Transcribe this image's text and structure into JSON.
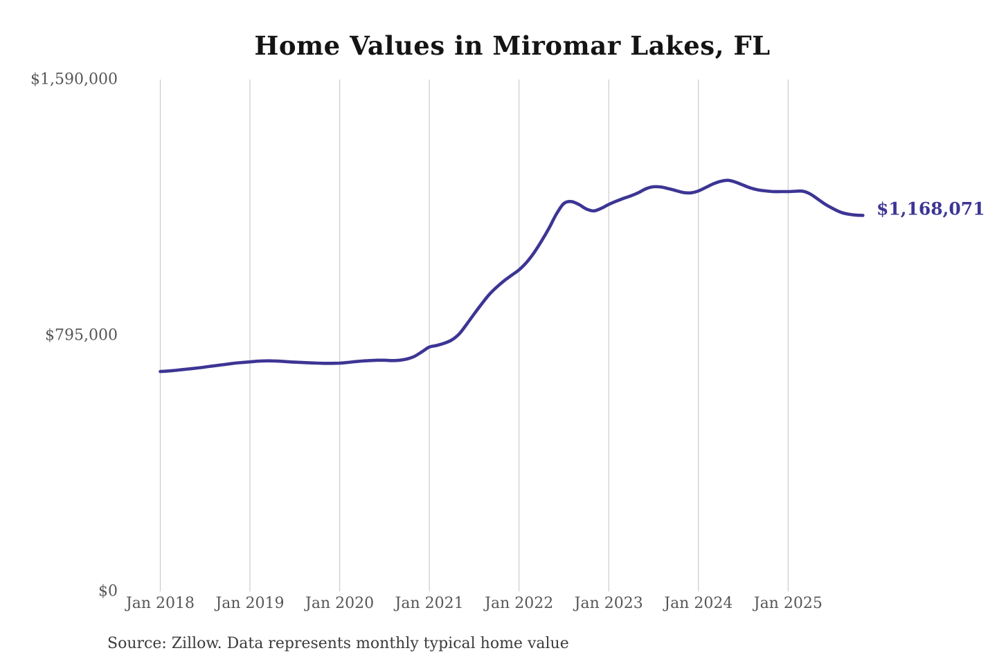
{
  "title": "Home Values in Miromar Lakes, FL",
  "source": "Source: Zillow. Data represents monthly typical home value",
  "end_label": "$1,168,071",
  "colors": {
    "line": "#3d3594",
    "end_label": "#3d3594",
    "grid": "#cbcbcb",
    "title": "#141414",
    "tick_label": "#575757",
    "source": "#3b3b3b",
    "background": "#ffffff"
  },
  "chart_data": {
    "type": "line",
    "title": "Home Values in Miromar Lakes, FL",
    "x_unit": "month",
    "x_start_label": "Jan 2018",
    "x_end_label": "Nov 2025",
    "ylim": [
      0,
      1590000
    ],
    "grid": "vertical-only",
    "legend": "none",
    "latest_value": 1168071,
    "y_ticks": [
      {
        "label": "$0",
        "value": 0
      },
      {
        "label": "$795,000",
        "value": 795000
      },
      {
        "label": "$1,590,000",
        "value": 1590000
      }
    ],
    "x_ticks": [
      {
        "label": "Jan 2018",
        "month_index": 0
      },
      {
        "label": "Jan 2019",
        "month_index": 12
      },
      {
        "label": "Jan 2020",
        "month_index": 24
      },
      {
        "label": "Jan 2021",
        "month_index": 36
      },
      {
        "label": "Jan 2022",
        "month_index": 48
      },
      {
        "label": "Jan 2023",
        "month_index": 60
      },
      {
        "label": "Jan 2024",
        "month_index": 72
      },
      {
        "label": "Jan 2025",
        "month_index": 84
      }
    ],
    "series": [
      {
        "name": "Typical home value (monthly)",
        "values": [
          683000,
          684500,
          686500,
          689000,
          691500,
          694000,
          697000,
          700000,
          703000,
          706000,
          709000,
          711000,
          713000,
          715000,
          716000,
          716000,
          715000,
          713500,
          712000,
          711000,
          710000,
          709000,
          708500,
          708500,
          709000,
          711000,
          713500,
          715500,
          717000,
          718000,
          718000,
          717000,
          718000,
          722000,
          730000,
          744000,
          759000,
          764000,
          771000,
          781000,
          800000,
          830000,
          862000,
          893000,
          922000,
          945000,
          965000,
          982000,
          999000,
          1022000,
          1052000,
          1088000,
          1128000,
          1172000,
          1205000,
          1211000,
          1202000,
          1188000,
          1182000,
          1190000,
          1202000,
          1212000,
          1221000,
          1229000,
          1239000,
          1251000,
          1257000,
          1256000,
          1251000,
          1245000,
          1239000,
          1238000,
          1244000,
          1255000,
          1266000,
          1274000,
          1277000,
          1271000,
          1262000,
          1253000,
          1247000,
          1244000,
          1242000,
          1242000,
          1242000,
          1243000,
          1243000,
          1234000,
          1218000,
          1202000,
          1189000,
          1178000,
          1172000,
          1169000,
          1168071
        ]
      }
    ]
  }
}
